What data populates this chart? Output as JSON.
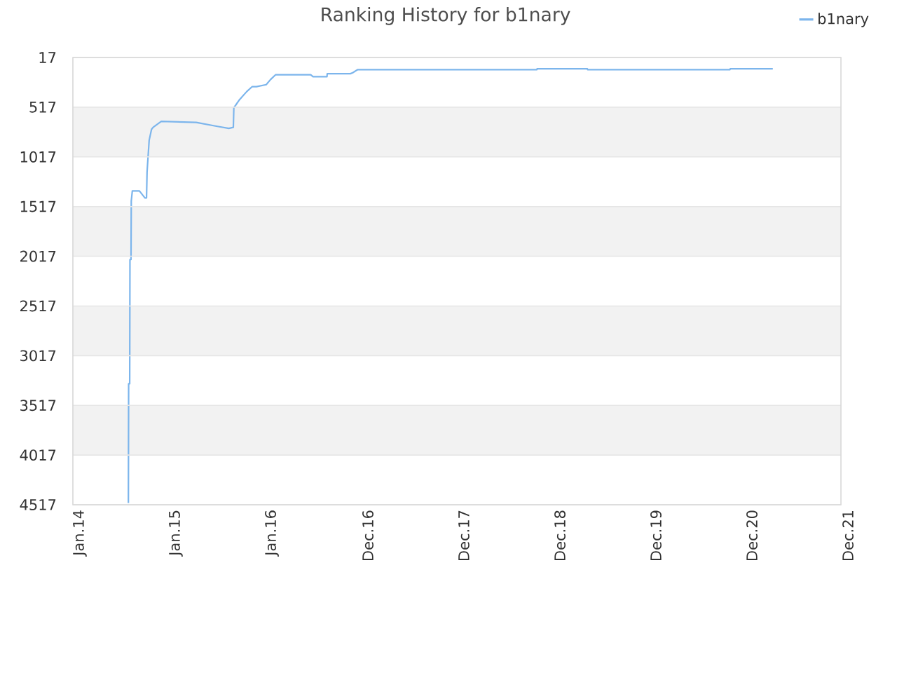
{
  "chart_data": {
    "type": "line",
    "title": "Ranking History for b1nary",
    "x": [
      "2014-07-31",
      "2014-08-01",
      "2014-08-05",
      "2014-08-06",
      "2014-08-10",
      "2014-08-11",
      "2014-08-15",
      "2014-09-11",
      "2014-10-02",
      "2014-10-08",
      "2014-10-10",
      "2014-10-18",
      "2014-10-27",
      "2014-11-02",
      "2014-12-03",
      "2015-04-15",
      "2015-07-04",
      "2015-08-17",
      "2015-09-03",
      "2015-09-05",
      "2015-09-11",
      "2015-09-27",
      "2015-10-24",
      "2015-11-14",
      "2015-11-30",
      "2016-01-06",
      "2016-01-22",
      "2016-02-11",
      "2016-06-23",
      "2016-07-02",
      "2016-08-24",
      "2016-08-25",
      "2016-11-21",
      "2016-11-30",
      "2016-12-18",
      "2018-10-31",
      "2018-11-01",
      "2019-05-11",
      "2019-05-12",
      "2020-11-03",
      "2020-11-04",
      "2021-04-15"
    ],
    "series": [
      {
        "name": "b1nary",
        "color": "#7cb5ec",
        "values": [
          4500,
          3300,
          3300,
          2050,
          2050,
          1460,
          1360,
          1360,
          1430,
          1430,
          1170,
          850,
          740,
          720,
          660,
          670,
          710,
          730,
          720,
          520,
          500,
          440,
          360,
          310,
          310,
          290,
          240,
          190,
          190,
          210,
          210,
          180,
          180,
          170,
          140,
          140,
          130,
          130,
          140,
          140,
          130,
          130
        ]
      }
    ],
    "xlim": [
      "2014-01-01",
      "2021-12-30"
    ],
    "xticks": [
      {
        "value": "2014-01-01",
        "label": "Jan.14"
      },
      {
        "value": "2015-01-01",
        "label": "Jan.15"
      },
      {
        "value": "2016-01-01",
        "label": "Jan.16"
      },
      {
        "value": "2016-12-31",
        "label": "Dec.16"
      },
      {
        "value": "2017-12-31",
        "label": "Dec.17"
      },
      {
        "value": "2018-12-31",
        "label": "Dec.18"
      },
      {
        "value": "2019-12-31",
        "label": "Dec.19"
      },
      {
        "value": "2020-12-30",
        "label": "Dec.20"
      },
      {
        "value": "2021-12-30",
        "label": "Dec.21"
      }
    ],
    "ylim": [
      4517,
      17
    ],
    "yticks": [
      17,
      517,
      1017,
      1517,
      2017,
      2517,
      3017,
      3517,
      4017,
      4517
    ],
    "bands": [
      {
        "axis": "y",
        "from": 517,
        "to": 1017,
        "color": "#f2f2f2"
      },
      {
        "axis": "y",
        "from": 1517,
        "to": 2017,
        "color": "#f2f2f2"
      },
      {
        "axis": "y",
        "from": 2517,
        "to": 3017,
        "color": "#f2f2f2"
      },
      {
        "axis": "y",
        "from": 3517,
        "to": 4017,
        "color": "#f2f2f2"
      }
    ],
    "grid": "y",
    "legend": "top right"
  }
}
